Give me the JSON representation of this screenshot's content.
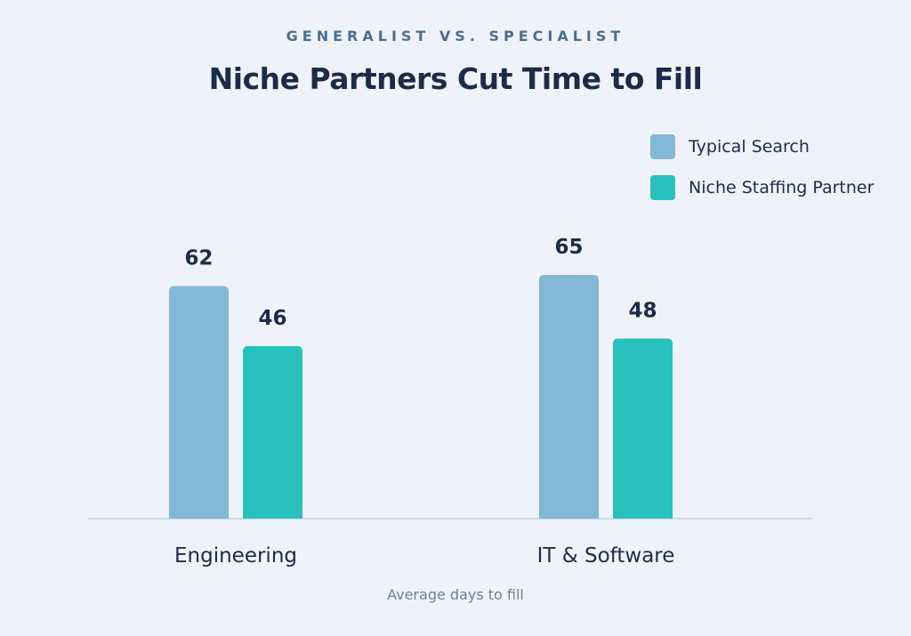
{
  "header": {
    "subtitle": "GENERALIST VS. SPECIALIST",
    "title": "Niche Partners Cut Time to Fill"
  },
  "legend": {
    "placement": "top-right",
    "items": [
      {
        "label": "Typical Search",
        "color": "#82b7d5"
      },
      {
        "label": "Niche Staffing Partner",
        "color": "#28c0bd"
      }
    ]
  },
  "footnote": "Average days to fill",
  "chart_data": {
    "type": "bar",
    "title": "Niche Partners Cut Time to Fill",
    "subtitle": "GENERALIST VS. SPECIALIST",
    "xlabel": "Average days to fill",
    "ylabel": "",
    "categories": [
      "Engineering",
      "IT & Software"
    ],
    "series": [
      {
        "name": "Typical Search",
        "values": [
          62,
          65
        ],
        "color": "#82b7d5"
      },
      {
        "name": "Niche Staffing Partner",
        "values": [
          46,
          48
        ],
        "color": "#28c0bd"
      }
    ],
    "ylim": [
      0,
      65
    ],
    "grid": false,
    "data_labels": true,
    "legend_position": "top-right"
  }
}
